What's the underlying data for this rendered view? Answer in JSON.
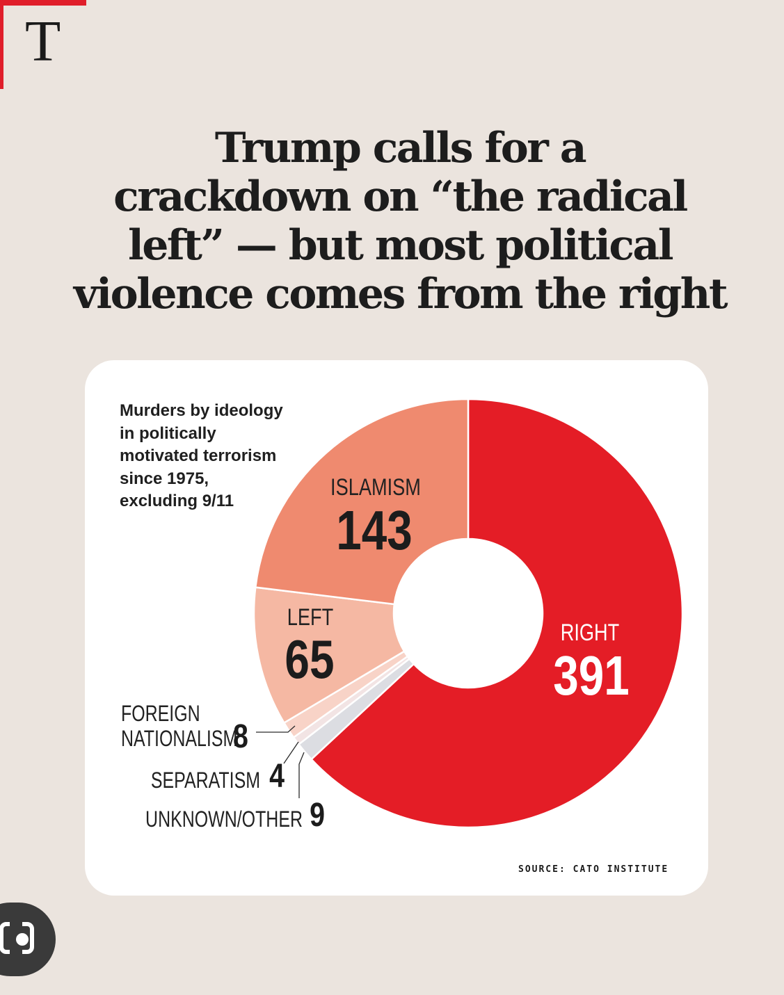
{
  "brand": {
    "letter": "T",
    "accent": "#e01e2a"
  },
  "headline_lines": [
    "Trump calls for a",
    "crackdown on “the radical",
    "left” — but most political",
    "violence comes from the right"
  ],
  "chart_data": {
    "type": "pie",
    "variant": "donut",
    "title": "Murders by ideology in politically motivated terrorism since 1975, excluding 9/11",
    "title_lines": [
      "Murders by ideology",
      "in politically",
      "motivated terrorism",
      "since 1975,",
      "excluding 9/11"
    ],
    "slices": [
      {
        "key": "right",
        "label": "RIGHT",
        "value": 391,
        "color": "#e41d26"
      },
      {
        "key": "unknown",
        "label": "UNKNOWN/OTHER",
        "value": 9,
        "color": "#dcdde2"
      },
      {
        "key": "separatism",
        "label": "SEPARATISM",
        "value": 4,
        "color": "#f2e4e4"
      },
      {
        "key": "foreign",
        "label": "FOREIGN NATIONALISM",
        "label_lines": [
          "FOREIGN",
          "NATIONALISM"
        ],
        "value": 8,
        "color": "#f8d3c7"
      },
      {
        "key": "left",
        "label": "LEFT",
        "value": 65,
        "color": "#f5b8a3"
      },
      {
        "key": "islamism",
        "label": "ISLAMISM",
        "value": 143,
        "color": "#ef8a6f"
      }
    ],
    "source": "SOURCE: CATO INSTITUTE"
  },
  "lens_icon": "camera-lens-icon"
}
